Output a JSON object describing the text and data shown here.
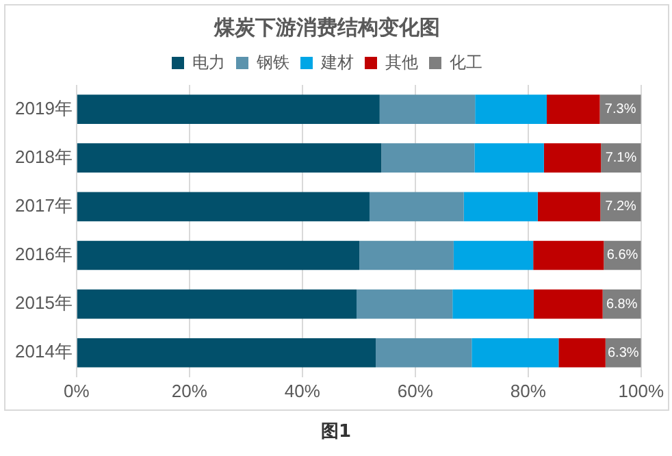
{
  "chart_data": {
    "type": "bar",
    "orientation": "horizontal",
    "stacked": true,
    "title": "煤炭下游消费结构变化图",
    "categories": [
      "2019年",
      "2018年",
      "2017年",
      "2016年",
      "2015年",
      "2014年"
    ],
    "series": [
      {
        "name": "电力",
        "color": "#02506b",
        "values": [
          53.7,
          54.0,
          51.9,
          50.1,
          49.6,
          53.0
        ]
      },
      {
        "name": "钢铁",
        "color": "#5b93ad",
        "values": [
          16.9,
          16.5,
          16.7,
          16.7,
          17.0,
          17.0
        ]
      },
      {
        "name": "建材",
        "color": "#00a6e6",
        "values": [
          12.7,
          12.3,
          13.1,
          14.1,
          14.4,
          15.4
        ]
      },
      {
        "name": "其他",
        "color": "#c00000",
        "values": [
          9.4,
          10.1,
          11.1,
          12.5,
          12.2,
          8.3
        ]
      },
      {
        "name": "化工",
        "color": "#7f7f7f",
        "values": [
          7.3,
          7.1,
          7.2,
          6.6,
          6.8,
          6.3
        ],
        "value_labels": [
          "7.3%",
          "7.1%",
          "7.2%",
          "6.6%",
          "6.8%",
          "6.3%"
        ]
      }
    ],
    "xlim": [
      0,
      100
    ],
    "xticks": [
      {
        "value": 0,
        "label": "0%"
      },
      {
        "value": 20,
        "label": "20%"
      },
      {
        "value": 40,
        "label": "40%"
      },
      {
        "value": 60,
        "label": "60%"
      },
      {
        "value": 80,
        "label": "80%"
      },
      {
        "value": 100,
        "label": "100%"
      }
    ],
    "grid": "x",
    "legend": "top",
    "annotations": [
      "图1"
    ]
  }
}
